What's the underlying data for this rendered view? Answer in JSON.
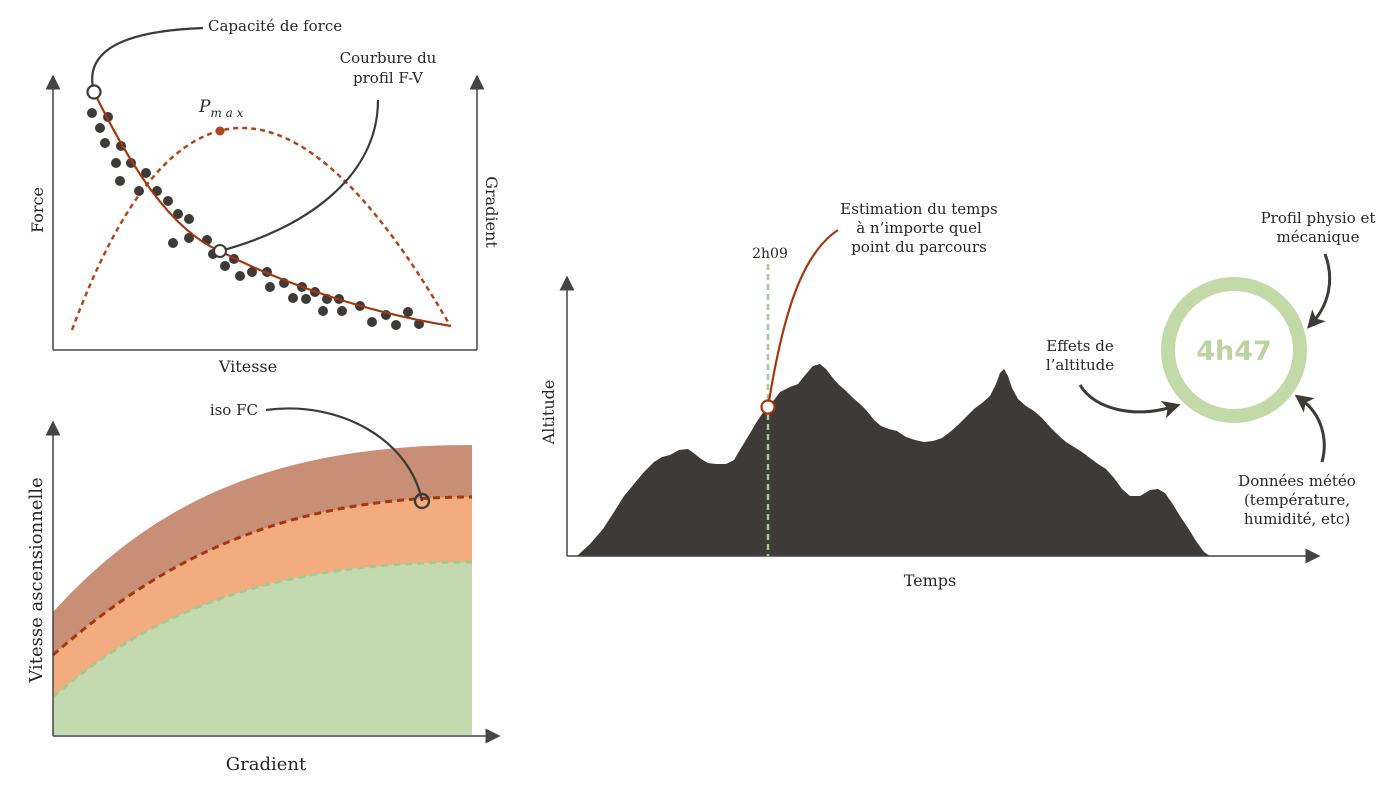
{
  "colors": {
    "dark": "#3e3a38",
    "rust": "#a3380f",
    "rust_dot": "#b2451a",
    "band_dark": "#c98e76",
    "band_orange": "#f3ac7f",
    "band_green": "#c3d9b0",
    "green_dash": "#a6c98d",
    "ring": "#c3d9a8",
    "ring_text": "#bcd3a2",
    "axis": "#444444"
  },
  "fv_chart": {
    "x_label": "Vitesse",
    "y_label": "Force",
    "y2_label": "Gradient",
    "pmax_label_main": "P",
    "pmax_label_sub": "m a x",
    "callout_force": "Capacité de force",
    "callout_curve_line1": "Courbure du",
    "callout_curve_line2": "profil F-V"
  },
  "iso_chart": {
    "x_label": "Gradient",
    "y_label": "Vitesse ascensionnelle",
    "callout": "iso FC"
  },
  "profile_chart": {
    "x_label": "Temps",
    "y_label": "Altitude",
    "marker_time": "2h09",
    "estimate_line1": "Estimation du temps",
    "estimate_line2": "à n’importe quel",
    "estimate_line3": "point du parcours"
  },
  "prediction": {
    "time": "4h47",
    "physio_line1": "Profil physio et",
    "physio_line2": "mécanique",
    "altitude_line1": "Effets de",
    "altitude_line2": "l’altitude",
    "weather_line1": "Données météo",
    "weather_line2": "(température,",
    "weather_line3": "humidité, etc)"
  }
}
